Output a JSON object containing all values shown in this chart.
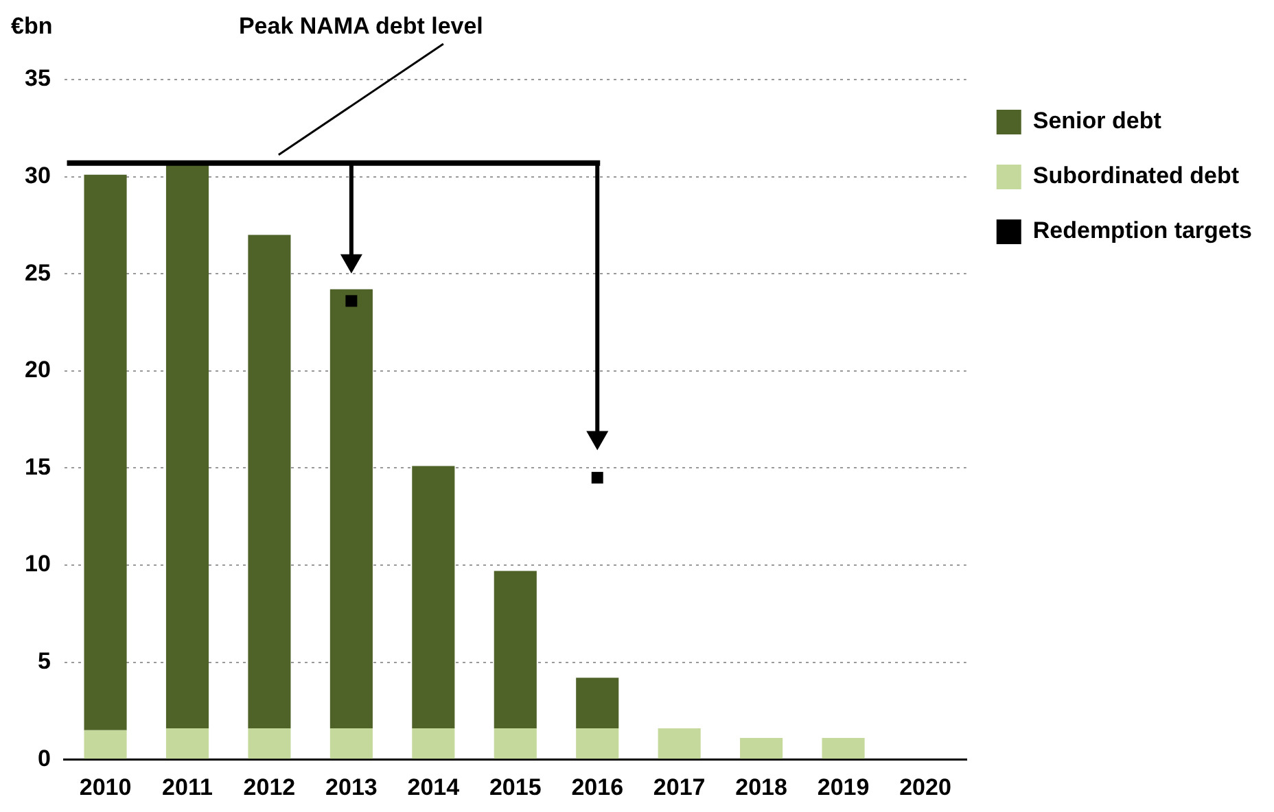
{
  "chart_data": {
    "type": "bar",
    "stacked": true,
    "ylabel": "€bn",
    "categories": [
      "2010",
      "2011",
      "2012",
      "2013",
      "2014",
      "2015",
      "2016",
      "2017",
      "2018",
      "2019",
      "2020"
    ],
    "series": [
      {
        "name": "Subordinated debt",
        "color": "#c4d99b",
        "values": [
          1.5,
          1.6,
          1.6,
          1.6,
          1.6,
          1.6,
          1.6,
          1.6,
          1.1,
          1.1,
          null
        ]
      },
      {
        "name": "Senior debt",
        "color": "#4f6228",
        "values": [
          28.6,
          29.0,
          25.4,
          22.6,
          13.5,
          8.1,
          2.6,
          null,
          null,
          null,
          null
        ]
      },
      {
        "name": "Redemption targets",
        "type": "scatter",
        "color": "#000000",
        "marker": "square",
        "values": [
          null,
          null,
          null,
          23.6,
          null,
          null,
          14.5,
          null,
          null,
          null,
          null
        ]
      }
    ],
    "ylim": [
      0,
      35
    ],
    "yticks": [
      0,
      5,
      10,
      15,
      20,
      25,
      30,
      35
    ],
    "grid": "y",
    "legend": "right",
    "ref_lines": [
      {
        "axis": "y",
        "value": 30.7,
        "label": "Peak NAMA debt level",
        "color": "#000000"
      }
    ]
  }
}
